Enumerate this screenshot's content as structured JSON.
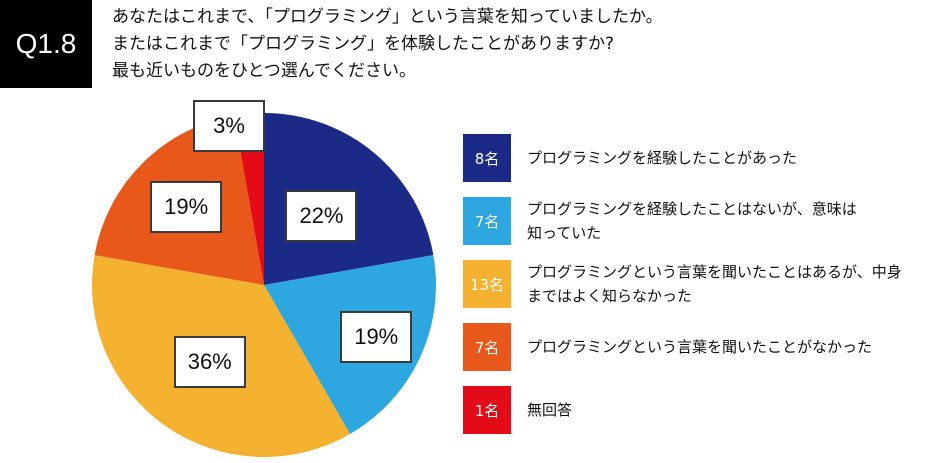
{
  "badge": "Q1.8",
  "question_lines": [
    "あなたはこれまで、「プログラミング」という言葉を知っていましたか。",
    "またはこれまで「プログラミング」を体験したことがありますか?",
    "最も近いものをひとつ選んでください。"
  ],
  "chart_data": {
    "type": "pie",
    "title": "",
    "unit": "名",
    "slices": [
      {
        "label": "プログラミングを経験したことがあった",
        "count": 8,
        "count_label": "8名",
        "percent": 22,
        "percent_label": "22%",
        "color": "#1c2a87"
      },
      {
        "label_lines": [
          "プログラミングを経験したことはないが、意味は",
          "知っていた"
        ],
        "count": 7,
        "count_label": "7名",
        "percent": 19,
        "percent_label": "19%",
        "color": "#2ea7e0"
      },
      {
        "label_lines": [
          "プログラミングという言葉を聞いたことはあるが、中身",
          "まではよく知らなかった"
        ],
        "count": 13,
        "count_label": "13名",
        "percent": 36,
        "percent_label": "36%",
        "color": "#f5b230"
      },
      {
        "label": "プログラミングという言葉を聞いたことがなかった",
        "count": 7,
        "count_label": "7名",
        "percent": 19,
        "percent_label": "19%",
        "color": "#e8581a"
      },
      {
        "label": "無回答",
        "count": 1,
        "count_label": "1名",
        "percent": 3,
        "percent_label": "3%",
        "color": "#e30b17"
      }
    ],
    "start": "12 o'clock",
    "direction": "clockwise",
    "legend_position": "right"
  }
}
